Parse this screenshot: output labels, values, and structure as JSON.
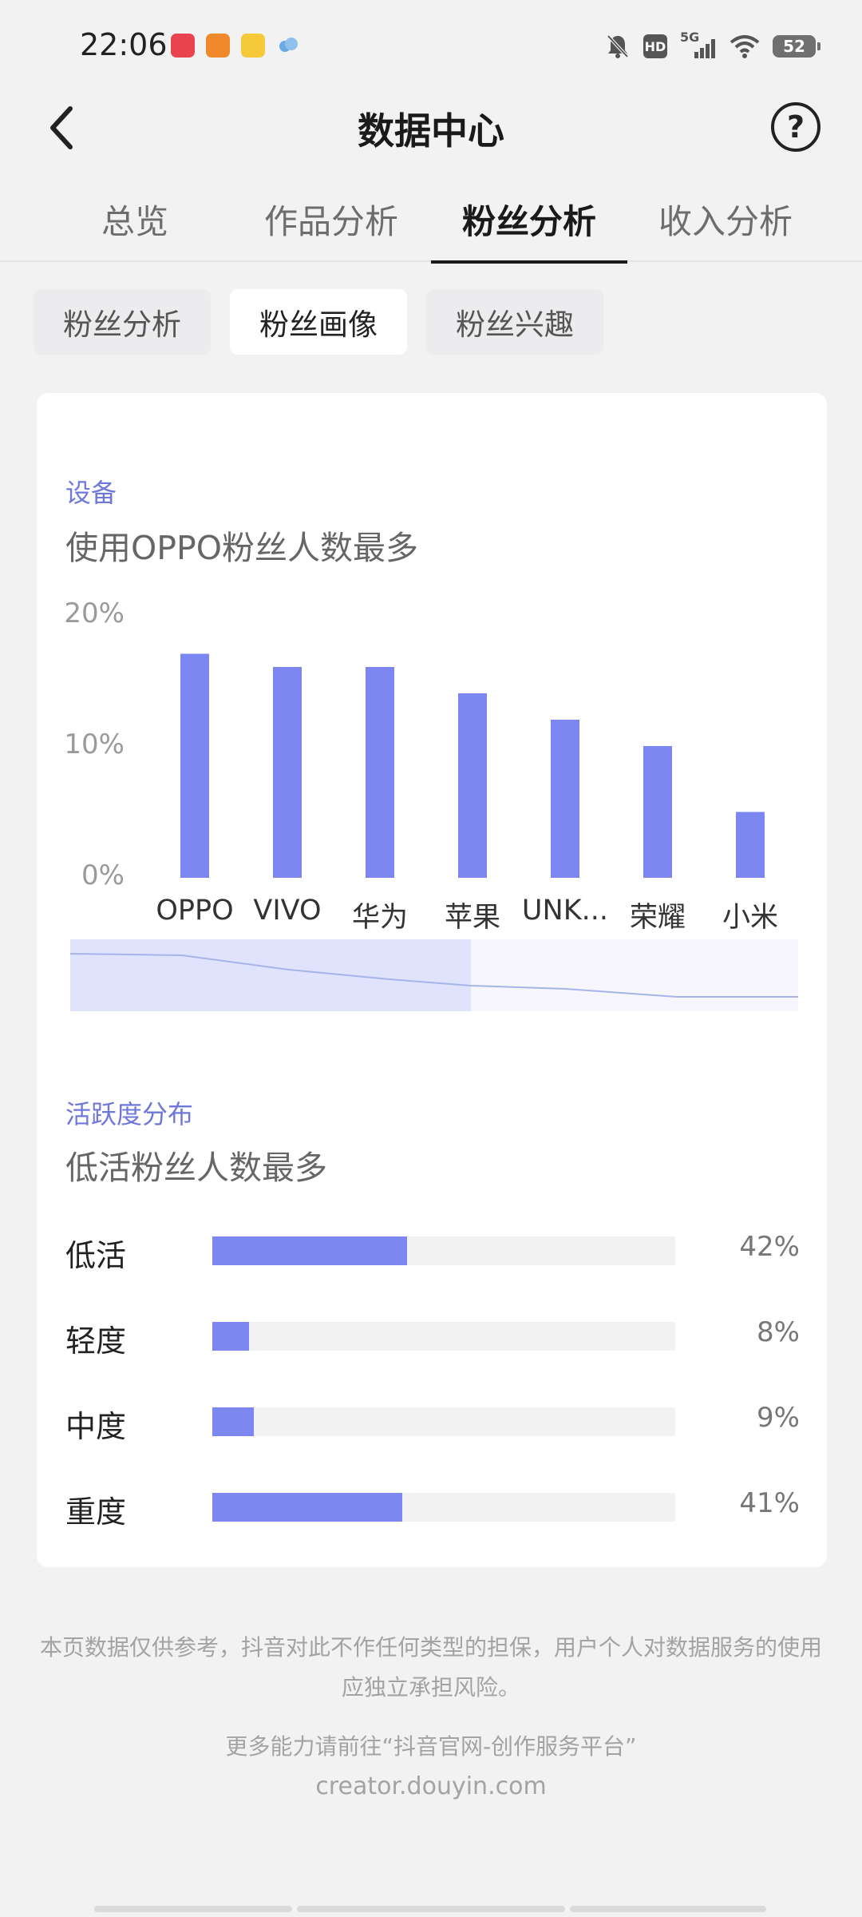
{
  "status_bar": {
    "time": "22:06",
    "network": "5G",
    "battery": "52",
    "hd_badge": "HD",
    "app_icons": [
      {
        "name": "xiaohongshu-app-icon",
        "color": "#e8434f"
      },
      {
        "name": "orange-app-icon",
        "color": "#f0882c"
      },
      {
        "name": "yellow-app-icon",
        "color": "#f6c93b"
      },
      {
        "name": "cloud-app-icon",
        "color": "#6da8e6"
      }
    ]
  },
  "header": {
    "title": "数据中心",
    "back_icon": "chevron-left-icon",
    "help_icon": "?"
  },
  "tabs": [
    {
      "label": "总览",
      "active": false
    },
    {
      "label": "作品分析",
      "active": false
    },
    {
      "label": "粉丝分析",
      "active": true
    },
    {
      "label": "收入分析",
      "active": false
    }
  ],
  "subtabs": [
    {
      "label": "粉丝分析",
      "active": false
    },
    {
      "label": "粉丝画像",
      "active": true
    },
    {
      "label": "粉丝兴趣",
      "active": false
    }
  ],
  "device_section": {
    "label": "设备",
    "title": "使用OPPO粉丝人数最多"
  },
  "chart_data": {
    "type": "bar",
    "categories": [
      "OPPO",
      "VIVO",
      "华为",
      "苹果",
      "UNK...",
      "荣耀",
      "小米"
    ],
    "values": [
      17,
      16,
      16,
      14,
      12,
      10,
      5
    ],
    "y_ticks": [
      "20%",
      "10%",
      "0%"
    ],
    "ylim": [
      0,
      20
    ],
    "bar_color": "#7d87f1",
    "grid": false
  },
  "activity_section": {
    "label": "活跃度分布",
    "title": "低活粉丝人数最多",
    "rows": [
      {
        "label": "低活",
        "pct_text": "42%",
        "value": 42
      },
      {
        "label": "轻度",
        "pct_text": "8%",
        "value": 8
      },
      {
        "label": "中度",
        "pct_text": "9%",
        "value": 9
      },
      {
        "label": "重度",
        "pct_text": "41%",
        "value": 41
      }
    ]
  },
  "footer": {
    "disclaimer": "本页数据仅供参考，抖音对此不作任何类型的担保，用户个人对数据服务的使用应独立承担风险。",
    "more": "更多能力请前往“抖音官网-创作服务平台”",
    "site": "creator.douyin.com"
  },
  "colors": {
    "accent": "#7d87f1",
    "section_label": "#6f78d8",
    "page_bg": "#f2f2f3"
  }
}
